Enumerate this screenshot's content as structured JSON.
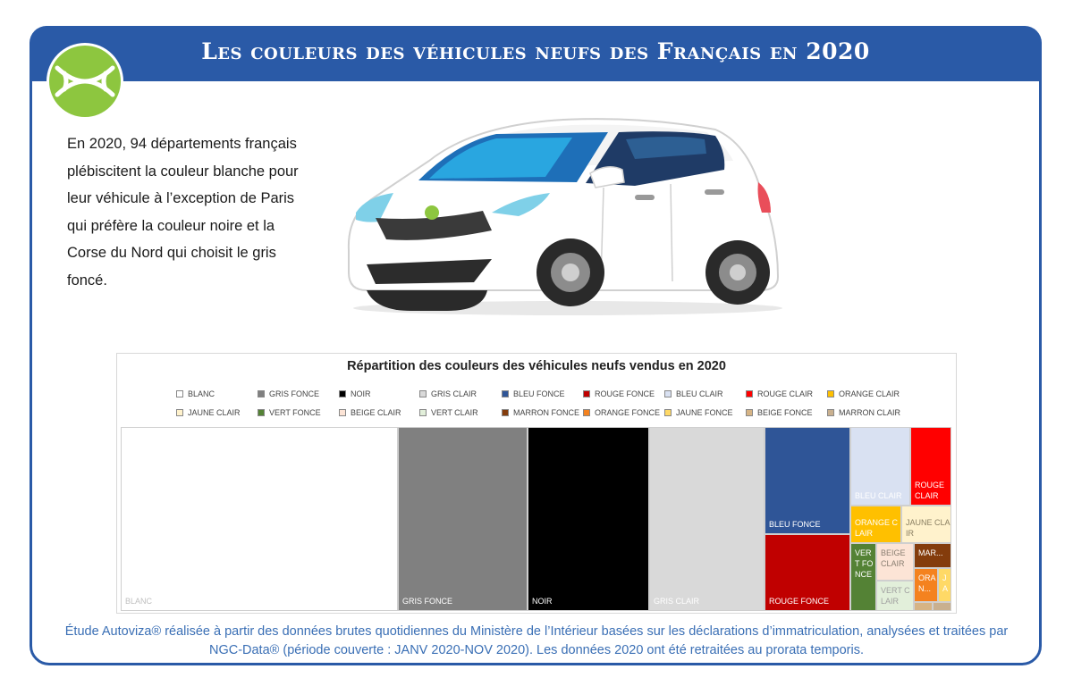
{
  "header": {
    "title": "Les couleurs des véhicules neufs des Français en 2020"
  },
  "intro_text": "En 2020, 94 départements français plébiscitent la couleur blanche pour leur véhicule à l’exception de Paris qui préfère la couleur noire et la Corse du Nord qui choisit le gris foncé.",
  "footer_text": "Étude Autoviza® réalisée à partir des données brutes quotidiennes du Ministère de l’Intérieur basées sur les déclarations d’immatriculation, analysées et traitées par NGC-Data® (période couverte : JANV 2020-NOV 2020). Les données 2020 ont été retraitées au prorata temporis.",
  "colors": {
    "brand_blue": "#2a5aa7",
    "logo_green": "#8dc63f"
  },
  "icons": [
    "autoviza-logo-icon",
    "car-illustration"
  ],
  "chart_data": {
    "type": "treemap",
    "title": "Répartition des couleurs des véhicules neufs vendus en 2020",
    "legend": [
      {
        "name": "BLANC",
        "color": "#ffffff"
      },
      {
        "name": "GRIS FONCE",
        "color": "#808080"
      },
      {
        "name": "NOIR",
        "color": "#000000"
      },
      {
        "name": "GRIS CLAIR",
        "color": "#d9d9d9"
      },
      {
        "name": "BLEU FONCE",
        "color": "#2f5597"
      },
      {
        "name": "ROUGE FONCE",
        "color": "#c00000"
      },
      {
        "name": "BLEU CLAIR",
        "color": "#d9e1f2"
      },
      {
        "name": "ROUGE CLAIR",
        "color": "#ff0000"
      },
      {
        "name": "ORANGE CLAIR",
        "color": "#ffc000"
      },
      {
        "name": "JAUNE CLAIR",
        "color": "#fff2cc"
      },
      {
        "name": "VERT FONCE",
        "color": "#548235"
      },
      {
        "name": "BEIGE CLAIR",
        "color": "#fce4d6"
      },
      {
        "name": "VERT CLAIR",
        "color": "#e2efda"
      },
      {
        "name": "MARRON FONCE",
        "color": "#843c0c"
      },
      {
        "name": "ORANGE FONCE",
        "color": "#f4821f"
      },
      {
        "name": "JAUNE FONCE",
        "color": "#ffd966"
      },
      {
        "name": "BEIGE FONCE",
        "color": "#d6b485"
      },
      {
        "name": "MARRON CLAIR",
        "color": "#c9b08f"
      }
    ],
    "cells": [
      {
        "label": "BLANC",
        "value": 31.0,
        "color": "#ffffff",
        "text_color": "#bfbfbf"
      },
      {
        "label": "GRIS FONCE",
        "value": 14.5,
        "color": "#808080",
        "text_color": "#ffffff"
      },
      {
        "label": "NOIR",
        "value": 13.6,
        "color": "#000000",
        "text_color": "#ffffff"
      },
      {
        "label": "GRIS CLAIR",
        "value": 12.9,
        "color": "#d9d9d9",
        "text_color": "#ffffff"
      },
      {
        "label": "BLEU FONCE",
        "value": 6.9,
        "color": "#2f5597",
        "text_color": "#ffffff"
      },
      {
        "label": "ROUGE FONCE",
        "value": 4.9,
        "color": "#c00000",
        "text_color": "#ffffff"
      },
      {
        "label": "BLEU CLAIR",
        "value": 4.2,
        "color": "#d9e1f2",
        "text_color": "#ffffff"
      },
      {
        "label": "ROUGE CLAIR",
        "value": 2.7,
        "color": "#ff0000",
        "text_color": "#ffffff"
      },
      {
        "label": "ORANGE CLAIR",
        "value": 1.6,
        "color": "#ffc000",
        "text_color": "#ffffff"
      },
      {
        "label": "JAUNE CLAIR",
        "value": 1.6,
        "color": "#fff2cc",
        "text_color": "#8a7f62"
      },
      {
        "label": "VERT FONCE",
        "value": 1.9,
        "color": "#548235",
        "text_color": "#ffffff"
      },
      {
        "label": "BEIGE CLAIR",
        "value": 1.1,
        "color": "#fce4d6",
        "text_color": "#8a7f72"
      },
      {
        "label": "VERT CLAIR",
        "value": 0.9,
        "color": "#e2efda",
        "text_color": "#a0a0a0"
      },
      {
        "label": "MAR...",
        "value": 0.5,
        "color": "#843c0c",
        "text_color": "#ffffff"
      },
      {
        "label": "ORA N...",
        "value": 0.6,
        "color": "#f4821f",
        "text_color": "#ffffff"
      },
      {
        "label": "J A",
        "value": 0.3,
        "color": "#ffd966",
        "text_color": "#ffffff"
      },
      {
        "label": "",
        "value": 0.15,
        "color": "#d6b485",
        "text_color": "#ffffff"
      },
      {
        "label": "",
        "value": 0.15,
        "color": "#c9b08f",
        "text_color": "#ffffff"
      }
    ]
  }
}
